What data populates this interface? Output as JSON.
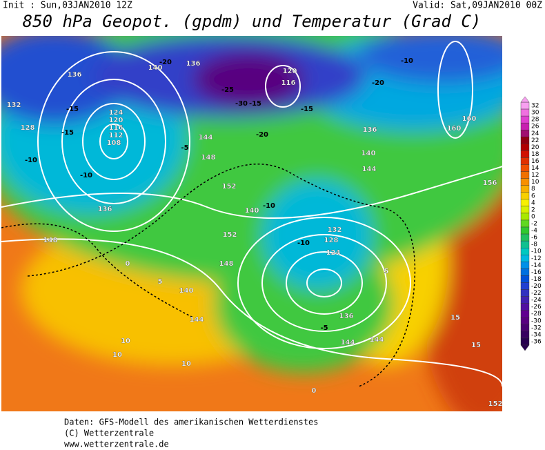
{
  "header": {
    "init": "Init : Sun,03JAN2010 12Z",
    "valid": "Valid: Sat,09JAN2010 00Z",
    "title": "850 hPa Geopot. (gpdm) und Temperatur (Grad C)"
  },
  "colorbar": {
    "labels": [
      32,
      30,
      28,
      26,
      24,
      22,
      20,
      18,
      16,
      14,
      12,
      10,
      8,
      6,
      4,
      2,
      0,
      -2,
      -4,
      -6,
      -8,
      -10,
      -12,
      -14,
      -16,
      -18,
      -20,
      -22,
      -24,
      -26,
      -28,
      -30,
      -32,
      -34,
      -36
    ],
    "colors": [
      "#f8a0f0",
      "#f070e0",
      "#e040d0",
      "#c820b0",
      "#a01070",
      "#900010",
      "#b00000",
      "#d01000",
      "#e03000",
      "#f05000",
      "#f07000",
      "#f89000",
      "#f8b000",
      "#f8d000",
      "#f8f000",
      "#d8f000",
      "#a8e800",
      "#60d820",
      "#30c830",
      "#20c060",
      "#10c090",
      "#00c8c0",
      "#00b8e0",
      "#0090e8",
      "#0070e0",
      "#0050d8",
      "#2040d0",
      "#3030c0",
      "#4020b0",
      "#5010a0",
      "#600090",
      "#580080",
      "#480070",
      "#380060",
      "#280050"
    ]
  },
  "map": {
    "contour_labels": [
      136,
      140,
      -20,
      -25,
      -30,
      136,
      132,
      -15,
      128,
      -15,
      124,
      120,
      116,
      112,
      108,
      -10,
      -10,
      144,
      -5,
      148,
      152,
      152,
      148,
      -10,
      140,
      132,
      128,
      124,
      -10,
      136,
      144,
      -20,
      -15,
      -10,
      160,
      160,
      156,
      136,
      140,
      144,
      136,
      148,
      0,
      5,
      10,
      10,
      10,
      15,
      15,
      152,
      -5,
      0,
      5,
      144,
      140,
      144,
      -15,
      -20,
      120,
      116
    ]
  },
  "footer": {
    "lines": [
      "Daten: GFS-Modell des amerikanischen Wetterdienstes",
      "(C) Wetterzentrale",
      "www.wetterzentrale.de"
    ]
  }
}
